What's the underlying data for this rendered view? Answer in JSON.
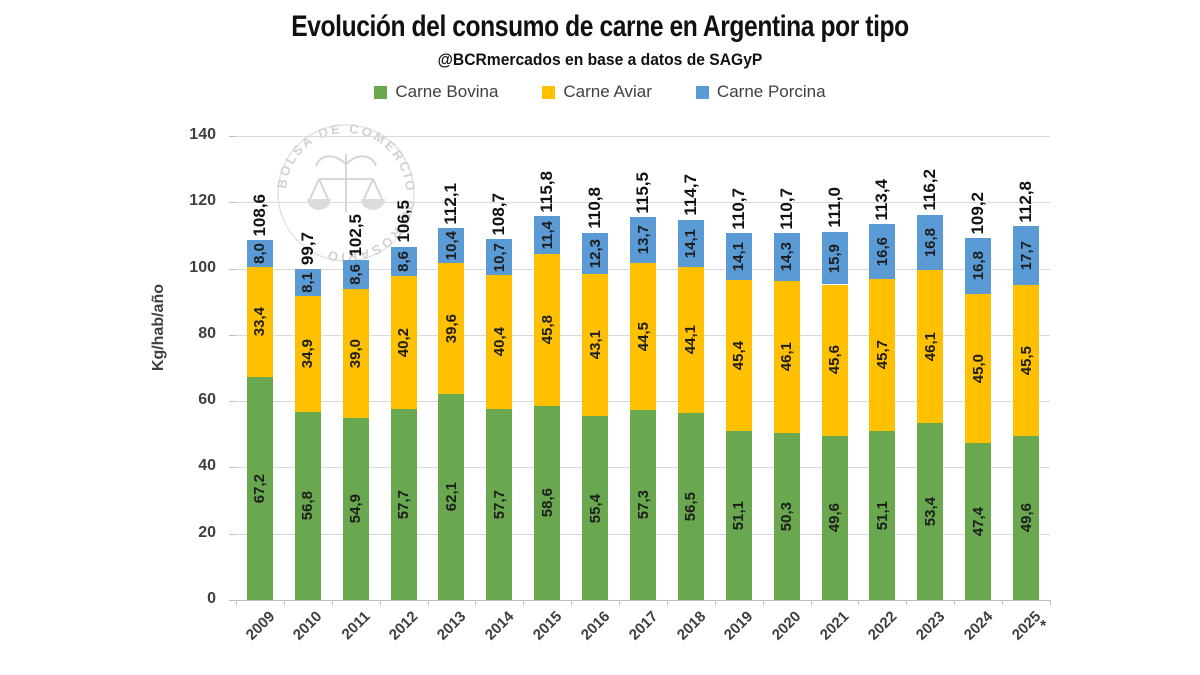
{
  "chart_data": {
    "type": "bar",
    "stacked": true,
    "title": "Evolución del consumo de carne en Argentina por tipo",
    "subtitle": "@BCRmercados en base a datos de SAGyP",
    "ylabel": "Kg/hab/año",
    "ylim": [
      0,
      140
    ],
    "yticks": [
      0,
      20,
      40,
      60,
      80,
      100,
      120,
      140
    ],
    "grid": true,
    "legend_position": "top",
    "footnote_marker": "*",
    "watermark": "BOLSA DE COMERCIO DE ROSARIO",
    "categories": [
      "2009",
      "2010",
      "2011",
      "2012",
      "2013",
      "2014",
      "2015",
      "2016",
      "2017",
      "2018",
      "2019",
      "2020",
      "2021",
      "2022",
      "2023",
      "2024",
      "2025"
    ],
    "series": [
      {
        "name": "Carne Bovina",
        "color": "#6AA84F",
        "values": [
          67.2,
          56.8,
          54.9,
          57.7,
          62.1,
          57.7,
          58.6,
          55.4,
          57.3,
          56.5,
          51.1,
          50.3,
          49.6,
          51.1,
          53.4,
          47.4,
          49.6
        ],
        "labels": [
          "67,2",
          "56,8",
          "54,9",
          "57,7",
          "62,1",
          "57,7",
          "58,6",
          "55,4",
          "57,3",
          "56,5",
          "51,1",
          "50,3",
          "49,6",
          "51,1",
          "53,4",
          "47,4",
          "49,6"
        ]
      },
      {
        "name": "Carne Aviar",
        "color": "#FFC000",
        "values": [
          33.4,
          34.9,
          39.0,
          40.2,
          39.6,
          40.4,
          45.8,
          43.1,
          44.5,
          44.1,
          45.4,
          46.1,
          45.6,
          45.7,
          46.1,
          45.0,
          45.5
        ],
        "labels": [
          "33,4",
          "34,9",
          "39,0",
          "40,2",
          "39,6",
          "40,4",
          "45,8",
          "43,1",
          "44,5",
          "44,1",
          "45,4",
          "46,1",
          "45,6",
          "45,7",
          "46,1",
          "45,0",
          "45,5"
        ]
      },
      {
        "name": "Carne Porcina",
        "color": "#5B9BD5",
        "values": [
          8.0,
          8.1,
          8.6,
          8.6,
          10.4,
          10.7,
          11.4,
          12.3,
          13.7,
          14.1,
          14.1,
          14.3,
          15.9,
          16.6,
          16.8,
          16.8,
          17.7
        ],
        "labels": [
          "8,0",
          "8,1",
          "8,6",
          "8,6",
          "10,4",
          "10,7",
          "11,4",
          "12,3",
          "13,7",
          "14,1",
          "14,1",
          "14,3",
          "15,9",
          "16,6",
          "16,8",
          "16,8",
          "17,7"
        ]
      }
    ],
    "totals": [
      108.6,
      99.7,
      102.5,
      106.5,
      112.1,
      108.7,
      115.8,
      110.8,
      115.5,
      114.7,
      110.7,
      110.7,
      111.0,
      113.4,
      116.2,
      109.2,
      112.8
    ],
    "total_labels": [
      "108,6",
      "99,7",
      "102,5",
      "106,5",
      "112,1",
      "108,7",
      "115,8",
      "110,8",
      "115,5",
      "114,7",
      "110,7",
      "110,7",
      "111,0",
      "113,4",
      "116,2",
      "109,2",
      "112,8"
    ]
  }
}
